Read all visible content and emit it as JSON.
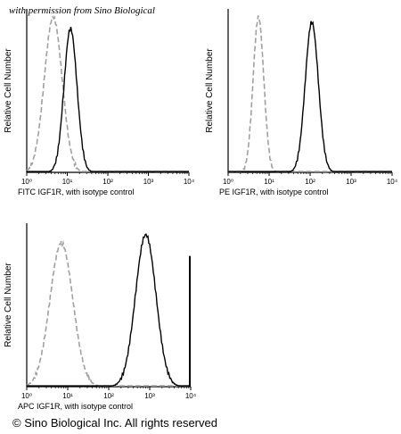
{
  "watermark": "with permission from Sino Biological",
  "copyright": "© Sino Biological Inc. All rights reserved",
  "colors": {
    "isotype": "#a0a0a0",
    "sample": "#000000"
  },
  "chart_data": [
    {
      "type": "line",
      "xscale": "log",
      "xlim": [
        1,
        10000
      ],
      "ylim": [
        0,
        100
      ],
      "xlabel": "FITC  IGF1R,  with isotype control",
      "ylabel": "Relative Cell Number",
      "xticks": [
        "10⁰",
        "10¹",
        "10²",
        "10³",
        "10⁴"
      ],
      "series": [
        {
          "style": "dashed-gray",
          "peak_x": 4.5,
          "peak_y": 95,
          "width_decades": 0.22
        },
        {
          "style": "solid-black",
          "peak_x": 12,
          "peak_y": 88,
          "width_decades": 0.16
        }
      ]
    },
    {
      "type": "line",
      "xscale": "log",
      "xlim": [
        1,
        10000
      ],
      "ylim": [
        0,
        100
      ],
      "xlabel": "PE  IGF1R,  with isotype control",
      "ylabel": "Relative Cell Number",
      "xticks": [
        "10⁰",
        "10¹",
        "10²",
        "10³",
        "10⁴"
      ],
      "series": [
        {
          "style": "dashed-gray",
          "peak_x": 5.5,
          "peak_y": 95,
          "width_decades": 0.13
        },
        {
          "style": "solid-black",
          "peak_x": 110,
          "peak_y": 92,
          "width_decades": 0.16
        }
      ]
    },
    {
      "type": "line",
      "xscale": "log",
      "xlim": [
        1,
        10000
      ],
      "ylim": [
        0,
        100
      ],
      "xlabel": "APC IGF1R, with isotype control",
      "ylabel": "Relative Cell Number",
      "xticks": [
        "10⁰",
        "10¹",
        "10²",
        "10³",
        "10⁴"
      ],
      "series": [
        {
          "style": "dashed-gray",
          "peak_x": 7,
          "peak_y": 88,
          "width_decades": 0.28
        },
        {
          "style": "solid-black",
          "peak_x": 800,
          "peak_y": 93,
          "width_decades": 0.25,
          "edge_spike": 80
        }
      ]
    }
  ]
}
